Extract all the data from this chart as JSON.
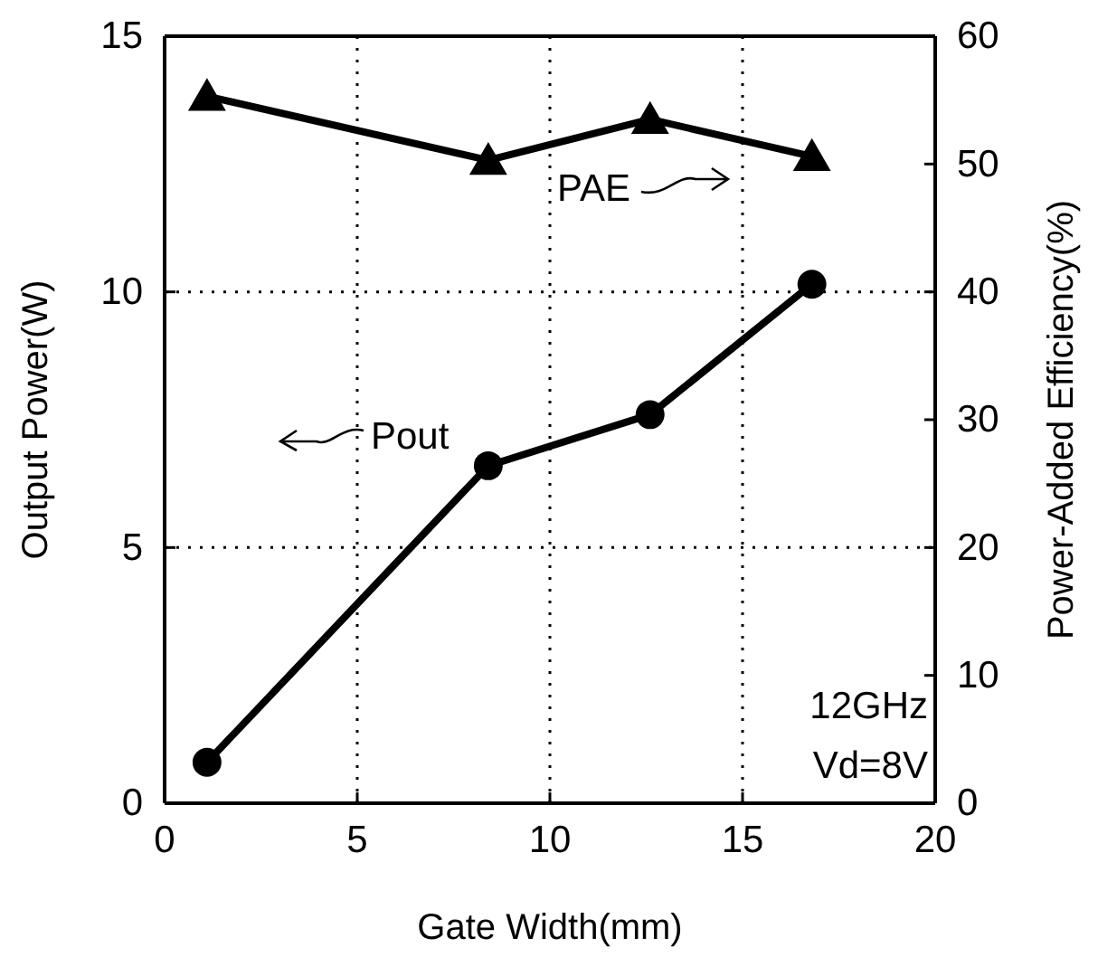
{
  "chart_data": {
    "type": "line",
    "xlabel": "Gate Width(mm)",
    "ylabel": "Output Power(W)",
    "y2label": "Power-Added Efficiency(%)",
    "x": [
      1.1,
      8.4,
      12.6,
      16.8
    ],
    "series": [
      {
        "name": "Pout",
        "color": "#000000",
        "values": [
          0.8,
          6.6,
          7.6,
          10.15
        ],
        "marker": "circle"
      },
      {
        "name": "PAE",
        "color": "#000000",
        "values": [
          55.3,
          50.3,
          53.5,
          50.6
        ],
        "marker": "triangle",
        "axis": "y2"
      }
    ],
    "xlim": [
      0,
      20
    ],
    "xticks": [
      0,
      5,
      10,
      15,
      20
    ],
    "ylim": [
      0,
      15
    ],
    "yticks": [
      0,
      5,
      10,
      15
    ],
    "y2lim": [
      0,
      60
    ],
    "y2ticks": [
      0,
      10,
      20,
      30,
      40,
      50,
      60
    ],
    "grid": true,
    "line_style": "solid",
    "annotations": [
      "12GHz",
      "Vd=8V"
    ]
  }
}
